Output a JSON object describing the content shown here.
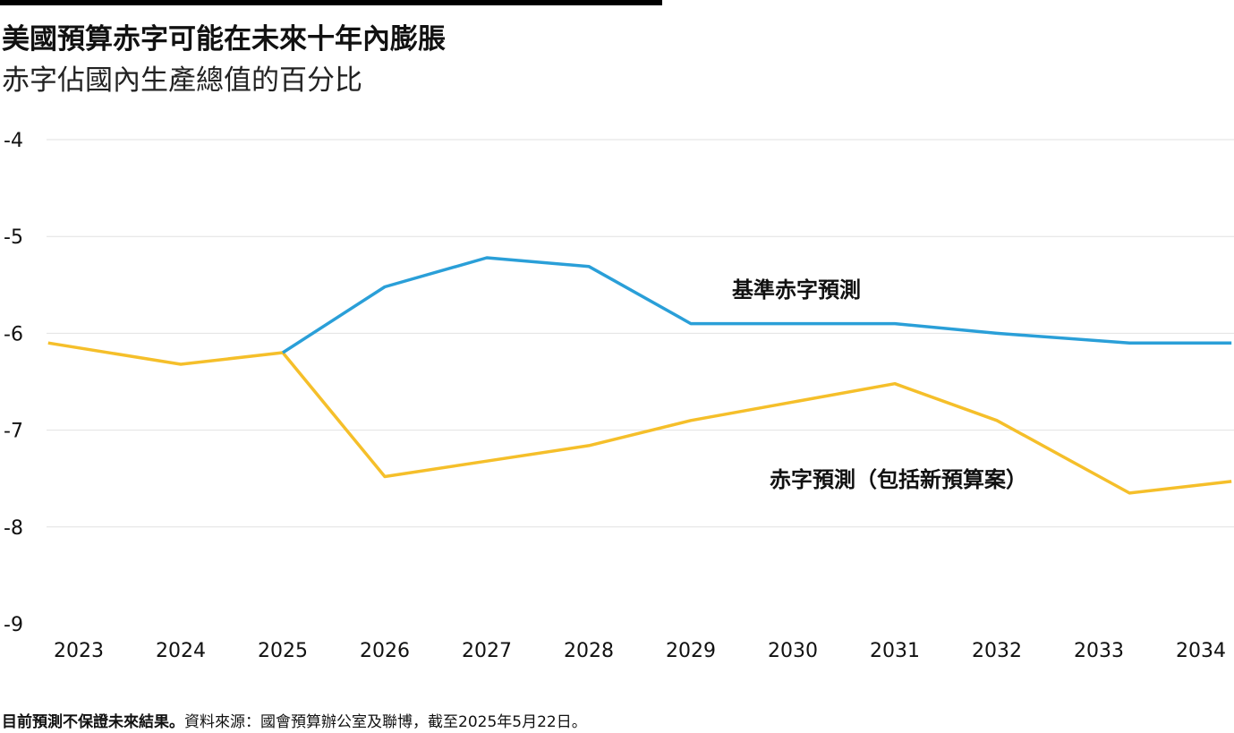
{
  "header": {
    "title": "美國預算赤字可能在未來十年內膨脹",
    "subtitle": "赤字佔國內生產總值的百分比"
  },
  "footer": {
    "disclaimer": "目前預測不保證未來結果。",
    "source": "資料來源：國會預算辦公室及聯博，截至2025年5月22日。"
  },
  "chart_data": {
    "type": "line",
    "x": [
      "2023",
      "2024",
      "2025",
      "2026",
      "2027",
      "2028",
      "2029",
      "2030",
      "2031",
      "2032",
      "2033",
      "2034"
    ],
    "ylim": [
      -9,
      -4
    ],
    "yticks": [
      -4,
      -5,
      -6,
      -7,
      -8,
      -9
    ],
    "grid": true,
    "series": [
      {
        "name": "基準赤字預測",
        "color": "#2a9fd8",
        "points": [
          [
            2025,
            -6.2
          ],
          [
            2026,
            -5.52
          ],
          [
            2027,
            -5.22
          ],
          [
            2028,
            -5.31
          ],
          [
            2029,
            -5.9
          ],
          [
            2031,
            -5.9
          ],
          [
            2032,
            -6.0
          ],
          [
            2033.3,
            -6.1
          ],
          [
            2034.3,
            -6.1
          ]
        ]
      },
      {
        "name": "赤字預測（包括新預算案）",
        "color": "#f5bf2a",
        "points": [
          [
            2022.7,
            -6.1
          ],
          [
            2024,
            -6.32
          ],
          [
            2025,
            -6.2
          ],
          [
            2026,
            -7.48
          ],
          [
            2027,
            -7.32
          ],
          [
            2028,
            -7.16
          ],
          [
            2029,
            -6.9
          ],
          [
            2031,
            -6.52
          ],
          [
            2032,
            -6.9
          ],
          [
            2033.3,
            -7.65
          ],
          [
            2034.3,
            -7.53
          ]
        ]
      }
    ]
  }
}
